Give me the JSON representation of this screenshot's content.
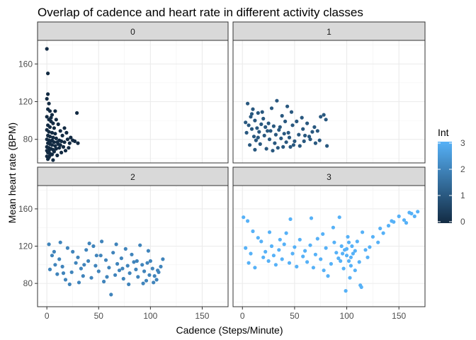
{
  "chart_data": {
    "type": "scatter",
    "title": "Overlap of cadence and heart rate in different activity classes",
    "xlabel": "Cadence (Steps/Minute)",
    "ylabel": "Mean heart rate (BPM)",
    "xlim": [
      -9,
      175
    ],
    "ylim": [
      55,
      185
    ],
    "x_ticks": [
      0,
      50,
      100,
      150
    ],
    "y_ticks": [
      80,
      120,
      160
    ],
    "facet_variable": "Int",
    "grid": true,
    "legend": {
      "title": "Int",
      "placement": "right",
      "type": "continuous",
      "range": [
        0,
        3
      ],
      "ticks": [
        0,
        1,
        2,
        3
      ],
      "low_color": "#132B43",
      "high_color": "#56B1F7"
    },
    "facets": [
      {
        "label": "0",
        "int": 0,
        "points": [
          [
            0,
            176
          ],
          [
            1,
            150
          ],
          [
            1,
            128
          ],
          [
            0,
            123
          ],
          [
            2,
            118
          ],
          [
            1,
            112
          ],
          [
            3,
            110
          ],
          [
            5,
            106
          ],
          [
            0,
            104
          ],
          [
            2,
            101
          ],
          [
            4,
            99
          ],
          [
            6,
            97
          ],
          [
            1,
            95
          ],
          [
            3,
            93
          ],
          [
            7,
            92
          ],
          [
            0,
            90
          ],
          [
            2,
            88
          ],
          [
            5,
            87
          ],
          [
            8,
            86
          ],
          [
            1,
            84
          ],
          [
            3,
            83
          ],
          [
            6,
            82
          ],
          [
            9,
            81
          ],
          [
            0,
            80
          ],
          [
            2,
            79
          ],
          [
            4,
            78
          ],
          [
            7,
            77
          ],
          [
            10,
            77
          ],
          [
            12,
            79
          ],
          [
            1,
            76
          ],
          [
            3,
            75
          ],
          [
            5,
            74
          ],
          [
            8,
            73
          ],
          [
            11,
            75
          ],
          [
            14,
            78
          ],
          [
            0,
            72
          ],
          [
            2,
            71
          ],
          [
            4,
            70
          ],
          [
            6,
            69
          ],
          [
            9,
            70
          ],
          [
            0,
            68
          ],
          [
            1,
            66
          ],
          [
            3,
            65
          ],
          [
            5,
            64
          ],
          [
            0,
            62
          ],
          [
            2,
            61
          ],
          [
            1,
            59
          ],
          [
            3,
            63
          ],
          [
            7,
            67
          ],
          [
            12,
            71
          ],
          [
            15,
            84
          ],
          [
            16,
            72
          ],
          [
            18,
            68
          ],
          [
            20,
            80
          ],
          [
            22,
            76
          ],
          [
            25,
            79
          ],
          [
            30,
            76
          ],
          [
            29,
            108
          ],
          [
            17,
            92
          ],
          [
            13,
            89
          ],
          [
            11,
            96
          ],
          [
            9,
            101
          ],
          [
            14,
            66
          ],
          [
            19,
            87
          ],
          [
            23,
            82
          ],
          [
            27,
            78
          ],
          [
            10,
            63
          ],
          [
            6,
            58
          ],
          [
            4,
            103
          ],
          [
            8,
            110
          ],
          [
            2,
            68
          ],
          [
            5,
            79
          ],
          [
            13,
            74
          ],
          [
            17,
            77
          ],
          [
            21,
            71
          ]
        ]
      },
      {
        "label": "1",
        "int": 1,
        "points": [
          [
            5,
            118
          ],
          [
            10,
            112
          ],
          [
            15,
            108
          ],
          [
            8,
            104
          ],
          [
            20,
            102
          ],
          [
            12,
            100
          ],
          [
            3,
            98
          ],
          [
            25,
            97
          ],
          [
            18,
            96
          ],
          [
            6,
            95
          ],
          [
            30,
            94
          ],
          [
            22,
            93
          ],
          [
            14,
            92
          ],
          [
            9,
            91
          ],
          [
            35,
            90
          ],
          [
            27,
            89
          ],
          [
            16,
            88
          ],
          [
            4,
            87
          ],
          [
            40,
            86
          ],
          [
            32,
            85
          ],
          [
            21,
            84
          ],
          [
            11,
            83
          ],
          [
            45,
            82
          ],
          [
            37,
            81
          ],
          [
            26,
            80
          ],
          [
            13,
            79
          ],
          [
            50,
            78
          ],
          [
            42,
            77
          ],
          [
            31,
            76
          ],
          [
            17,
            75
          ],
          [
            7,
            74
          ],
          [
            55,
            73
          ],
          [
            46,
            72
          ],
          [
            34,
            71
          ],
          [
            23,
            70
          ],
          [
            12,
            69
          ],
          [
            60,
            84
          ],
          [
            65,
            80
          ],
          [
            58,
            91
          ],
          [
            70,
            76
          ],
          [
            75,
            104
          ],
          [
            78,
            106
          ],
          [
            62,
            97
          ],
          [
            67,
            88
          ],
          [
            80,
            101
          ],
          [
            52,
            99
          ],
          [
            48,
            95
          ],
          [
            38,
            105
          ],
          [
            28,
            113
          ],
          [
            33,
            121
          ],
          [
            43,
            115
          ],
          [
            19,
            109
          ],
          [
            9,
            107
          ],
          [
            24,
            89
          ],
          [
            36,
            93
          ],
          [
            44,
            87
          ],
          [
            54,
            85
          ],
          [
            64,
            83
          ],
          [
            74,
            79
          ],
          [
            81,
            73
          ],
          [
            39,
            72
          ],
          [
            29,
            68
          ],
          [
            49,
            74
          ],
          [
            59,
            78
          ],
          [
            69,
            93
          ],
          [
            72,
            89
          ],
          [
            57,
            103
          ],
          [
            47,
            109
          ],
          [
            41,
            99
          ],
          [
            15,
            82
          ]
        ]
      },
      {
        "label": "2",
        "int": 2,
        "points": [
          [
            2,
            122
          ],
          [
            5,
            110
          ],
          [
            8,
            100
          ],
          [
            3,
            95
          ],
          [
            12,
            106
          ],
          [
            15,
            98
          ],
          [
            10,
            90
          ],
          [
            20,
            118
          ],
          [
            18,
            84
          ],
          [
            25,
            114
          ],
          [
            28,
            102
          ],
          [
            24,
            92
          ],
          [
            30,
            108
          ],
          [
            33,
            96
          ],
          [
            35,
            88
          ],
          [
            38,
            116
          ],
          [
            40,
            104
          ],
          [
            43,
            86
          ],
          [
            45,
            120
          ],
          [
            47,
            99
          ],
          [
            50,
            93
          ],
          [
            52,
            110
          ],
          [
            55,
            82
          ],
          [
            57,
            105
          ],
          [
            60,
            97
          ],
          [
            62,
            68
          ],
          [
            64,
            113
          ],
          [
            66,
            89
          ],
          [
            68,
            101
          ],
          [
            70,
            94
          ],
          [
            72,
            107
          ],
          [
            74,
            85
          ],
          [
            76,
            117
          ],
          [
            78,
            99
          ],
          [
            80,
            91
          ],
          [
            82,
            111
          ],
          [
            84,
            103
          ],
          [
            86,
            95
          ],
          [
            88,
            87
          ],
          [
            90,
            121
          ],
          [
            92,
            100
          ],
          [
            94,
            93
          ],
          [
            96,
            83
          ],
          [
            98,
            115
          ],
          [
            100,
            104
          ],
          [
            102,
            96
          ],
          [
            104,
            88
          ],
          [
            106,
            84
          ],
          [
            108,
            92
          ],
          [
            110,
            98
          ],
          [
            112,
            106
          ],
          [
            13,
            124
          ],
          [
            22,
            79
          ],
          [
            31,
            81
          ],
          [
            41,
            123
          ],
          [
            53,
            125
          ],
          [
            67,
            122
          ],
          [
            79,
            79
          ],
          [
            93,
            80
          ],
          [
            99,
            89
          ],
          [
            103,
            81
          ],
          [
            107,
            94
          ],
          [
            7,
            114
          ],
          [
            16,
            91
          ],
          [
            36,
            100
          ],
          [
            48,
            110
          ],
          [
            58,
            87
          ],
          [
            73,
            96
          ],
          [
            87,
            104
          ],
          [
            97,
            102
          ]
        ]
      },
      {
        "label": "3",
        "int": 3,
        "points": [
          [
            1,
            151
          ],
          [
            5,
            147
          ],
          [
            10,
            136
          ],
          [
            15,
            129
          ],
          [
            3,
            118
          ],
          [
            8,
            112
          ],
          [
            18,
            125
          ],
          [
            20,
            108
          ],
          [
            22,
            114
          ],
          [
            25,
            104
          ],
          [
            28,
            120
          ],
          [
            30,
            110
          ],
          [
            32,
            100
          ],
          [
            35,
            116
          ],
          [
            38,
            106
          ],
          [
            40,
            122
          ],
          [
            42,
            134
          ],
          [
            45,
            102
          ],
          [
            48,
            112
          ],
          [
            50,
            119
          ],
          [
            52,
            98
          ],
          [
            55,
            127
          ],
          [
            58,
            109
          ],
          [
            60,
            115
          ],
          [
            62,
            103
          ],
          [
            65,
            121
          ],
          [
            68,
            97
          ],
          [
            70,
            111
          ],
          [
            72,
            128
          ],
          [
            75,
            106
          ],
          [
            78,
            94
          ],
          [
            80,
            118
          ],
          [
            82,
            88
          ],
          [
            85,
            101
          ],
          [
            88,
            124
          ],
          [
            90,
            113
          ],
          [
            92,
            107
          ],
          [
            95,
            120
          ],
          [
            97,
            96
          ],
          [
            98,
            116
          ],
          [
            100,
            110
          ],
          [
            101,
            130
          ],
          [
            102,
            104
          ],
          [
            103,
            86
          ],
          [
            104,
            99
          ],
          [
            105,
            120
          ],
          [
            106,
            112
          ],
          [
            108,
            94
          ],
          [
            110,
            125
          ],
          [
            112,
            103
          ],
          [
            113,
            78
          ],
          [
            115,
            135
          ],
          [
            118,
            116
          ],
          [
            120,
            108
          ],
          [
            125,
            130
          ],
          [
            130,
            124
          ],
          [
            135,
            134
          ],
          [
            140,
            142
          ],
          [
            145,
            146
          ],
          [
            150,
            152
          ],
          [
            155,
            148
          ],
          [
            160,
            156
          ],
          [
            165,
            152
          ],
          [
            168,
            157
          ],
          [
            93,
            151
          ],
          [
            99,
            72
          ],
          [
            114,
            76
          ],
          [
            46,
            149
          ],
          [
            66,
            150
          ],
          [
            26,
            135
          ],
          [
            6,
            102
          ],
          [
            12,
            97
          ],
          [
            36,
            127
          ],
          [
            77,
            133
          ],
          [
            87,
            140
          ],
          [
            122,
            119
          ],
          [
            132,
            139
          ],
          [
            143,
            147
          ],
          [
            157,
            145
          ],
          [
            162,
            155
          ],
          [
            96,
            112
          ],
          [
            100,
            117
          ],
          [
            104,
            108
          ],
          [
            108,
            115
          ],
          [
            102,
            124
          ],
          [
            94,
            104
          ]
        ]
      }
    ]
  }
}
